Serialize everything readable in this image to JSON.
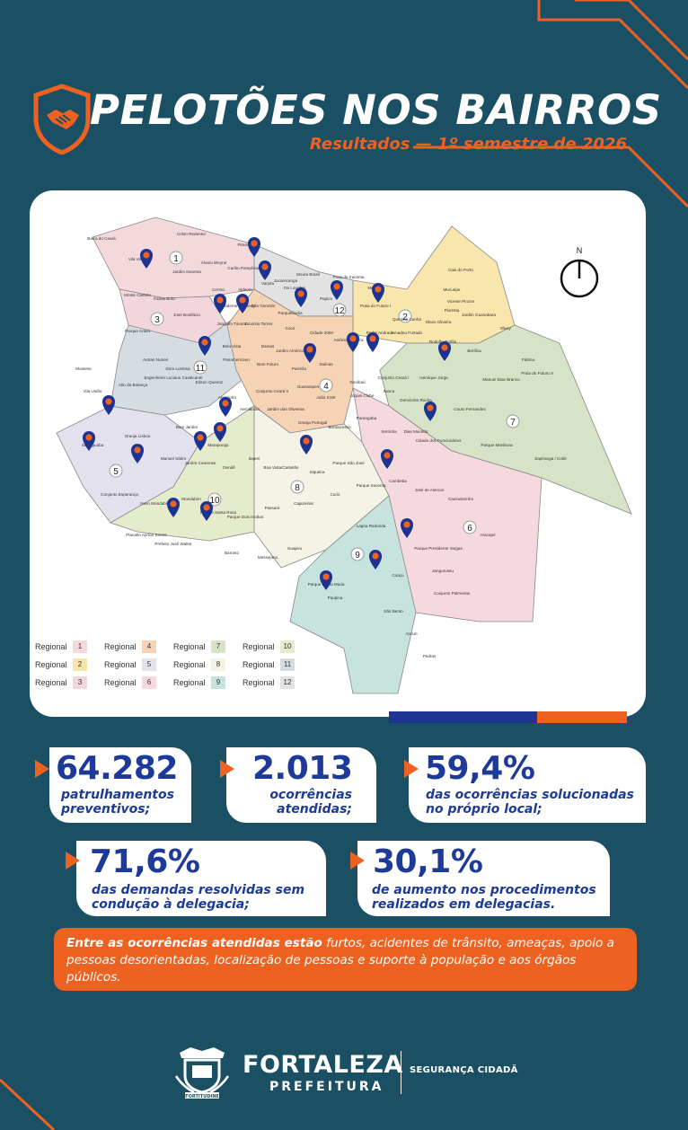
{
  "header": {
    "title": "PELOTÕES NOS BAIRROS",
    "subtitle": "Resultados — 1º semestre de 2026",
    "icon": "handshake-shield-icon"
  },
  "map": {
    "north_label": "N",
    "regional_numbers": [
      "1",
      "2",
      "3",
      "4",
      "5",
      "6",
      "7",
      "8",
      "9",
      "10",
      "11",
      "12"
    ],
    "neighborhoods": [
      "Barra do Ceará",
      "Cristo Redentor",
      "Pirambu",
      "Vila Velha",
      "Jardim Iracema",
      "Álvaro Weyne",
      "Carlito Pamplona",
      "Jacarecanga",
      "Moura Brasil",
      "Praia de Iracema",
      "Meireles",
      "Cais do Porto",
      "Mucuripe",
      "Vicente Pinzon",
      "Jardim Guanabara",
      "Floresta",
      "Ellery",
      "Monte Castelo",
      "Farias Brito",
      "Centro",
      "Aldeota",
      "Varjota",
      "De Lourdes",
      "Papicu",
      "Praia do Futuro I",
      "Quintino Cunha",
      "Olavo Oliveira",
      "Presidente Kennedy",
      "São Gerardo",
      "Parquelândia",
      "Parque Araxá",
      "José Bonifácio",
      "Joaquim Távora",
      "Dionísio Torres",
      "Cocó",
      "Cidade 2000",
      "Antônio Bezerra",
      "Padre Andrade",
      "Amadeu Furtado",
      "Rodolfo Teófilo",
      "Benfica",
      "Fátima",
      "Manuel Dias Branco",
      "Praia do Futuro II",
      "Autran Nunes",
      "Dom Lustosa",
      "Bela Vista",
      "Panamericano",
      "Damas",
      "Bom Futuro",
      "Jardim América",
      "Parreão",
      "Salinas",
      "Guararapes",
      "Genibaú",
      "Conjunto Ceará I",
      "Henrique Jorge",
      "Demócrito Rocha",
      "Couto Fernandes",
      "Montese",
      "Vila União",
      "Alto da Balança",
      "Engenheiro Luciano Cavalcante",
      "Edson Queiroz",
      "Conjunto Ceará II",
      "João XXIII",
      "Jóquei Clube",
      "Itaoca",
      "Aeroporto",
      "Aerolândia",
      "Jardim das Oliveiras",
      "Granja Portugal",
      "Bonsucesso",
      "Parangaba",
      "Serrinha",
      "Dias Macêdo",
      "Cidade dos Funcionários",
      "Parque Manibura",
      "Sapiranga / Coité",
      "Sabiaguaba",
      "Granja Lisboa",
      "Bom Jardim",
      "Maraponga",
      "Itaperi",
      "Boa Vista/Castelão",
      "Siqueira",
      "Parque São José",
      "Manoel Sátiro",
      "Jardim Cearense",
      "Dendê",
      "Parque Iracema",
      "Cambeba",
      "José de Alencar",
      "Canindezinho",
      "Conjunto Esperança",
      "Novo Mondubim",
      "Mondubim",
      "Parque Santa Rosa",
      "Parque Dois Irmãos",
      "Passaré",
      "Cajazeiras",
      "Curió",
      "Lagoa Redonda",
      "Parque Presidente Vargas",
      "Aracapé",
      "Planalto Ayrton Senna",
      "Prefeito José Walter",
      "Barroso",
      "Messejana",
      "Guajeru",
      "Coaçu",
      "Jangurussu",
      "Conjunto Palmeiras",
      "Parque Santa Maria",
      "Paupina",
      "São Bento",
      "Ancuri",
      "Pedras"
    ],
    "legend": [
      {
        "label": "Regional",
        "num": "1",
        "color": "#f3d9dc"
      },
      {
        "label": "Regional",
        "num": "4",
        "color": "#f6d3b4"
      },
      {
        "label": "Regional",
        "num": "7",
        "color": "#d6e3c6"
      },
      {
        "label": "Regional",
        "num": "10",
        "color": "#e5eccc"
      },
      {
        "label": "Regional",
        "num": "2",
        "color": "#f8e6ad"
      },
      {
        "label": "Regional",
        "num": "5",
        "color": "#e4e1ef"
      },
      {
        "label": "Regional",
        "num": "8",
        "color": "#f4f3e5"
      },
      {
        "label": "Regional",
        "num": "11",
        "color": "#d5dde2"
      },
      {
        "label": "Regional",
        "num": "3",
        "color": "#f3d6dc"
      },
      {
        "label": "Regional",
        "num": "6",
        "color": "#f6d9de"
      },
      {
        "label": "Regional",
        "num": "9",
        "color": "#c6e4dd"
      },
      {
        "label": "Regional",
        "num": "12",
        "color": "#e2e2e2"
      }
    ]
  },
  "stats": [
    {
      "value": "64.282",
      "label": "patrulhamentos preventivos;"
    },
    {
      "value": "2.013",
      "label": "ocorrências atendidas;"
    },
    {
      "value": "59,4%",
      "label": "das ocorrências solucionadas no próprio local;"
    },
    {
      "value": "71,6%",
      "label": "das demandas resolvidas sem condução à delegacia;"
    },
    {
      "value": "30,1%",
      "label": "de aumento nos procedimentos realizados em delegacias."
    }
  ],
  "footnote": {
    "bold": "Entre as ocorrências atendidas estão",
    "text": " furtos, acidentes de trânsito, ameaças, apoio a pessoas desorientadas, localização de pessoas e suporte à população e aos órgãos públicos."
  },
  "footer": {
    "city": "FORTALEZA",
    "prefeitura": "PREFEITURA",
    "crest_motto": "FORTITUDINE",
    "unit": "SEGURANÇA CIDADÃ"
  },
  "colors": {
    "background": "#1b4f63",
    "accent": "#ee6221",
    "primary_blue": "#1d3a9a"
  }
}
